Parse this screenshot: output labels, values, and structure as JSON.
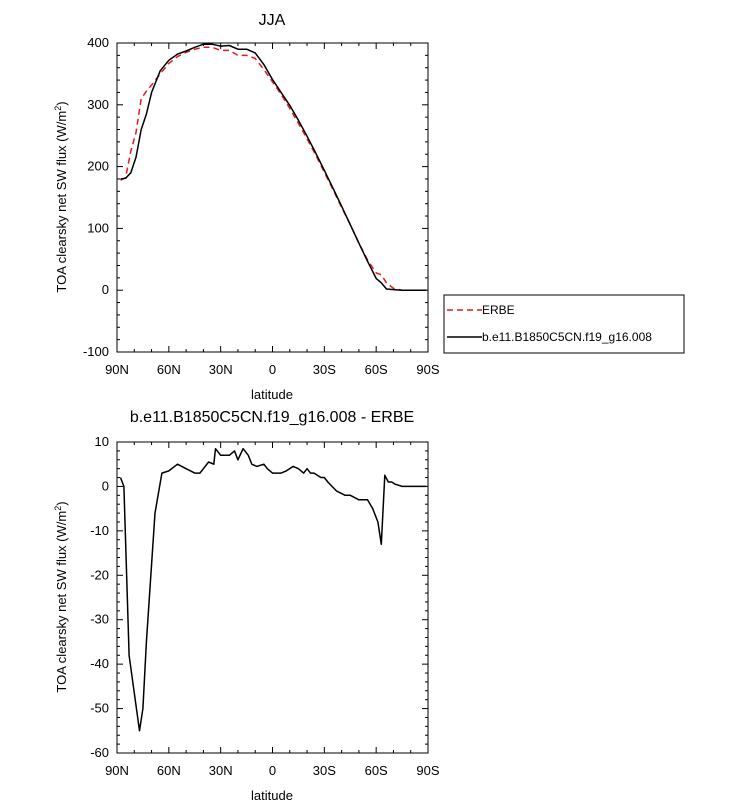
{
  "chart_data": [
    {
      "type": "line",
      "title": "JJA",
      "xlabel": "latitude",
      "ylabel": "TOA clearsky net SW flux (W/m",
      "ylabel_sup": "2",
      "ylabel_end": ")",
      "xlim": [
        -90,
        90
      ],
      "ylim": [
        -100,
        400
      ],
      "xticks": [
        -90,
        -60,
        -30,
        0,
        30,
        60,
        90
      ],
      "xtick_labels": [
        "90N",
        "60N",
        "30N",
        "0",
        "30S",
        "60S",
        "90S"
      ],
      "yticks": [
        -100,
        0,
        100,
        200,
        300,
        400
      ],
      "ytick_labels": [
        "-100",
        "0",
        "100",
        "200",
        "300",
        "400"
      ],
      "legend_position": "right",
      "series": [
        {
          "name": "ERBE",
          "color": "#e41a1c",
          "dash": "dashed",
          "x": [
            -88,
            -85,
            -82,
            -79,
            -76,
            -73,
            -70,
            -65,
            -60,
            -55,
            -50,
            -45,
            -40,
            -35,
            -30,
            -25,
            -20,
            -15,
            -10,
            -5,
            0,
            5,
            10,
            15,
            20,
            25,
            30,
            35,
            40,
            45,
            50,
            55,
            60,
            63,
            66,
            70,
            75,
            80,
            85,
            89
          ],
          "y": [
            178,
            182,
            225,
            255,
            310,
            322,
            332,
            350,
            367,
            378,
            385,
            390,
            393,
            393,
            388,
            388,
            380,
            380,
            375,
            357,
            337,
            317,
            294,
            270,
            245,
            219,
            191,
            163,
            134,
            106,
            76,
            49,
            28,
            25,
            12,
            3,
            0,
            0,
            0,
            0
          ]
        },
        {
          "name": "b.e11.B1850C5CN.f19_g16.008",
          "color": "#000000",
          "dash": "solid",
          "x": [
            -88,
            -85,
            -82,
            -79,
            -76,
            -73,
            -70,
            -65,
            -60,
            -55,
            -50,
            -45,
            -40,
            -35,
            -30,
            -25,
            -20,
            -15,
            -10,
            -5,
            0,
            5,
            10,
            15,
            20,
            25,
            30,
            35,
            40,
            45,
            50,
            55,
            60,
            63,
            66,
            70,
            75,
            80,
            85,
            89
          ],
          "y": [
            180,
            181,
            190,
            215,
            260,
            285,
            320,
            355,
            372,
            382,
            387,
            393,
            398,
            398,
            395,
            396,
            390,
            390,
            384,
            365,
            341,
            320,
            299,
            275,
            249,
            222,
            194,
            165,
            136,
            106,
            76,
            47,
            19,
            12,
            2,
            1,
            0,
            0,
            0,
            0
          ]
        }
      ]
    },
    {
      "type": "line",
      "title": "b.e11.B1850C5CN.f19_g16.008 - ERBE",
      "xlabel": "latitude",
      "ylabel": "TOA clearsky net SW flux (W/m",
      "ylabel_sup": "2",
      "ylabel_end": ")",
      "xlim": [
        -90,
        90
      ],
      "ylim": [
        -60,
        10
      ],
      "xticks": [
        -90,
        -60,
        -30,
        0,
        30,
        60,
        90
      ],
      "xtick_labels": [
        "90N",
        "60N",
        "30N",
        "0",
        "30S",
        "60S",
        "90S"
      ],
      "yticks": [
        -60,
        -50,
        -40,
        -30,
        -20,
        -10,
        0,
        10
      ],
      "ytick_labels": [
        "-60",
        "-50",
        "-40",
        "-30",
        "-20",
        "-10",
        "0",
        "10"
      ],
      "series": [
        {
          "color": "#000000",
          "dash": "solid",
          "x": [
            -88,
            -86,
            -83,
            -77,
            -75,
            -73,
            -68,
            -64,
            -60,
            -55,
            -50,
            -45,
            -42,
            -40,
            -37,
            -34,
            -33,
            -30,
            -25,
            -22,
            -20,
            -17,
            -14,
            -12,
            -9,
            -5,
            -3,
            0,
            3,
            5,
            8,
            12,
            15,
            18,
            20,
            22,
            24,
            28,
            30,
            32,
            37,
            42,
            45,
            50,
            55,
            58,
            61,
            63,
            65,
            67,
            69,
            71,
            75,
            78,
            82,
            85,
            89
          ],
          "y": [
            2,
            0,
            -38,
            -55,
            -50,
            -35,
            -6,
            3,
            3.5,
            5,
            4,
            3,
            3,
            4,
            5.5,
            5,
            8.5,
            7,
            7,
            8,
            6,
            8.5,
            7,
            5,
            4.5,
            5,
            4,
            3,
            3,
            3,
            3.5,
            4.5,
            4,
            3,
            4,
            3,
            3,
            2,
            2,
            1,
            -1,
            -2,
            -2,
            -3,
            -3,
            -5,
            -8,
            -13,
            2.5,
            1,
            1,
            0.5,
            0,
            0,
            0,
            0,
            0
          ]
        }
      ]
    }
  ]
}
